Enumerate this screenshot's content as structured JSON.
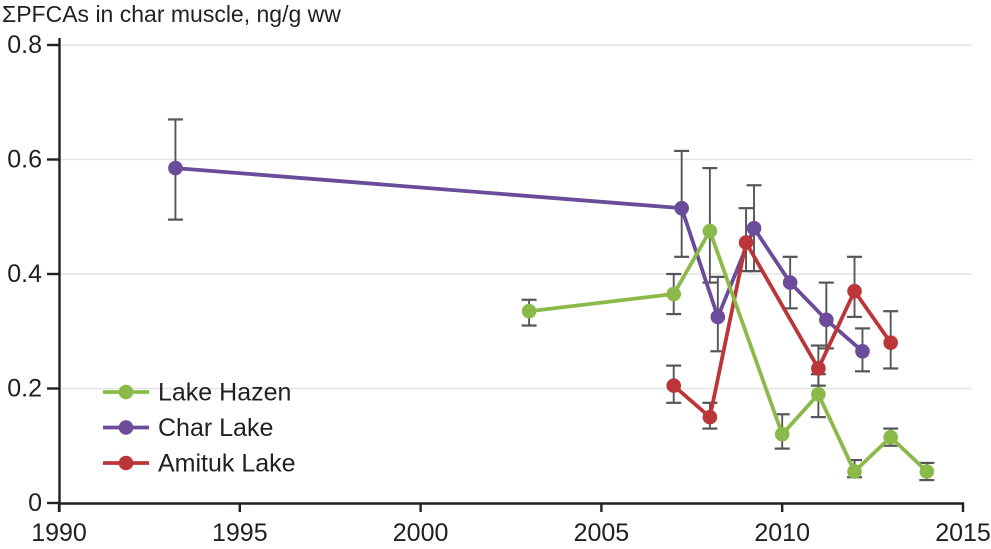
{
  "title": "ΣPFCAs in char muscle, ng/g ww",
  "colors": {
    "lake_hazen": "#8cba4a",
    "char_lake": "#6a4c9b",
    "amituk_lake": "#bc3539",
    "axis": "#231f20",
    "grid": "#e4e4e6",
    "error_bar": "#55565a",
    "background": "#ffffff"
  },
  "chart_data": {
    "type": "line",
    "title": "ΣPFCAs in char muscle, ng/g ww",
    "xlabel": "",
    "ylabel": "",
    "xlim": [
      1990,
      2015
    ],
    "ylim": [
      0,
      0.8
    ],
    "x_ticks": [
      "1990",
      "1995",
      "2000",
      "2005",
      "2010",
      "2015"
    ],
    "x_tick_values": [
      1990,
      1995,
      2000,
      2005,
      2010,
      2015
    ],
    "y_ticks": [
      "0",
      "0.2",
      "0.4",
      "0.6",
      "0.8"
    ],
    "y_tick_values": [
      0,
      0.2,
      0.4,
      0.6,
      0.8
    ],
    "grid": "horizontal-gridlines-at-y-ticks",
    "legend_position": "lower-left",
    "error_bars": true,
    "series": [
      {
        "name": "Lake Hazen",
        "color": "#8cba4a",
        "x_offset_years": 0,
        "points": [
          {
            "x": 2003,
            "y": 0.335,
            "lo": 0.31,
            "hi": 0.355
          },
          {
            "x": 2007,
            "y": 0.365,
            "lo": 0.33,
            "hi": 0.4
          },
          {
            "x": 2008,
            "y": 0.475,
            "lo": 0.385,
            "hi": 0.585
          },
          {
            "x": 2010,
            "y": 0.12,
            "lo": 0.095,
            "hi": 0.155
          },
          {
            "x": 2011,
            "y": 0.19,
            "lo": 0.15,
            "hi": 0.225
          },
          {
            "x": 2012,
            "y": 0.055,
            "lo": 0.045,
            "hi": 0.075
          },
          {
            "x": 2013,
            "y": 0.115,
            "lo": 0.1,
            "hi": 0.13
          },
          {
            "x": 2014,
            "y": 0.055,
            "lo": 0.04,
            "hi": 0.07
          }
        ]
      },
      {
        "name": "Char Lake",
        "color": "#6a4c9b",
        "x_offset_years": 0.22,
        "points": [
          {
            "x": 1993,
            "y": 0.585,
            "lo": 0.495,
            "hi": 0.67
          },
          {
            "x": 2007,
            "y": 0.515,
            "lo": 0.43,
            "hi": 0.615
          },
          {
            "x": 2008,
            "y": 0.325,
            "lo": 0.265,
            "hi": 0.395
          },
          {
            "x": 2009,
            "y": 0.48,
            "lo": 0.405,
            "hi": 0.555
          },
          {
            "x": 2010,
            "y": 0.385,
            "lo": 0.34,
            "hi": 0.43
          },
          {
            "x": 2011,
            "y": 0.32,
            "lo": 0.27,
            "hi": 0.385
          },
          {
            "x": 2012,
            "y": 0.265,
            "lo": 0.23,
            "hi": 0.305
          }
        ]
      },
      {
        "name": "Amituk Lake",
        "color": "#bc3539",
        "x_offset_years": 0,
        "points": [
          {
            "x": 2007,
            "y": 0.205,
            "lo": 0.175,
            "hi": 0.24
          },
          {
            "x": 2008,
            "y": 0.15,
            "lo": 0.13,
            "hi": 0.175
          },
          {
            "x": 2009,
            "y": 0.455,
            "lo": 0.405,
            "hi": 0.515
          },
          {
            "x": 2011,
            "y": 0.235,
            "lo": 0.205,
            "hi": 0.275
          },
          {
            "x": 2012,
            "y": 0.37,
            "lo": 0.325,
            "hi": 0.43
          },
          {
            "x": 2013,
            "y": 0.28,
            "lo": 0.235,
            "hi": 0.335
          }
        ]
      }
    ]
  }
}
